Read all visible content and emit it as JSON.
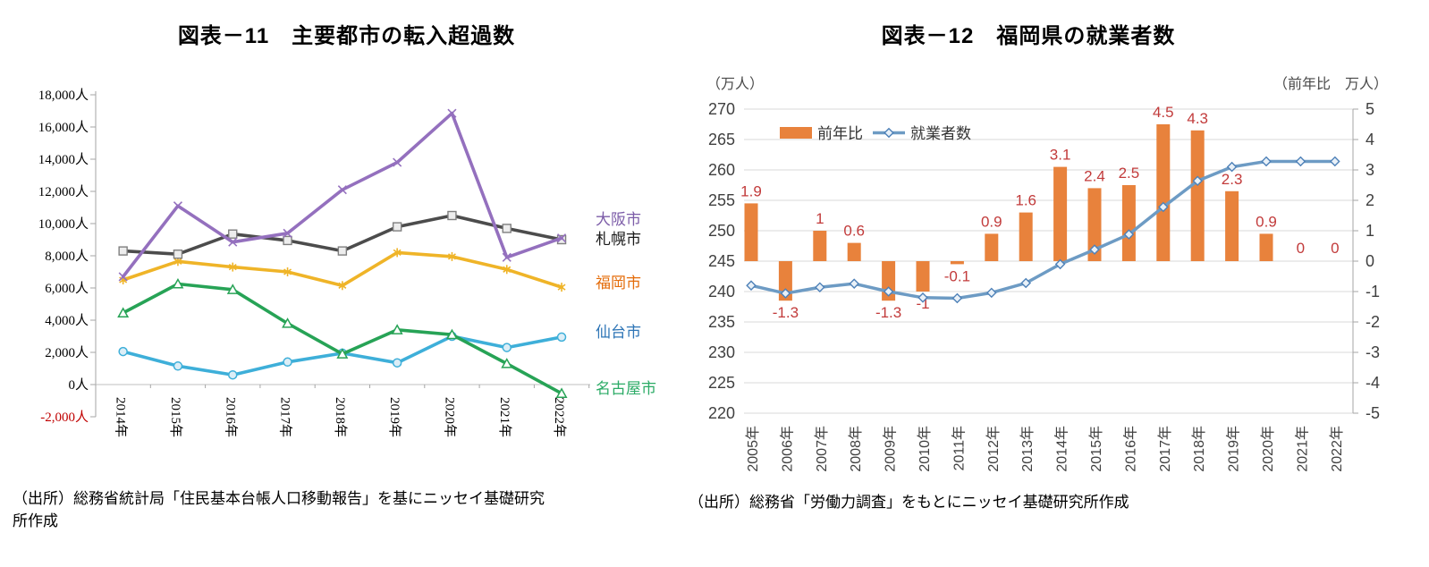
{
  "sources": {
    "left_line1": "（出所）総務省統計局「住民基本台帳人口移動報告」を基にニッセイ基礎研究",
    "left_line2": "所作成",
    "right": "（出所）総務省「労働力調査」をもとにニッセイ基礎研究所作成"
  },
  "chart_data": [
    {
      "type": "line",
      "title": "図表－11　主要都市の転入超過数",
      "categories": [
        "2014年",
        "2015年",
        "2016年",
        "2017年",
        "2018年",
        "2019年",
        "2020年",
        "2021年",
        "2022年"
      ],
      "ylim": [
        -2000,
        18000
      ],
      "ytick_step": 2000,
      "ytick_suffix": "人",
      "negative_tick_color": "#C00000",
      "grid": "zero-line-only",
      "legend_position": "right-end-labels",
      "series": [
        {
          "name": "大阪市",
          "slug": "osaka",
          "color": "#9470BE",
          "label_color": "#7C5CA8",
          "marker": "x",
          "values": [
            6700,
            11100,
            8850,
            9400,
            12100,
            13800,
            16850,
            7900,
            9100
          ]
        },
        {
          "name": "札幌市",
          "slug": "sapporo",
          "color": "#4C4C4C",
          "label_color": "#1A1A1A",
          "marker": "square",
          "values": [
            8300,
            8100,
            9350,
            8950,
            8300,
            9800,
            10500,
            9700,
            9000
          ]
        },
        {
          "name": "福岡市",
          "slug": "fukuoka",
          "color": "#EFB428",
          "label_color": "#E46C0A",
          "marker": "asterisk",
          "values": [
            6500,
            7650,
            7300,
            7000,
            6150,
            8200,
            7950,
            7150,
            6050
          ]
        },
        {
          "name": "仙台市",
          "slug": "sendai",
          "color": "#3EAFD9",
          "label_color": "#2E75B6",
          "marker": "circle",
          "values": [
            2050,
            1150,
            600,
            1400,
            1950,
            1350,
            3000,
            2300,
            2950
          ]
        },
        {
          "name": "名古屋市",
          "slug": "nagoya",
          "color": "#27A356",
          "label_color": "#2BAB66",
          "marker": "triangle",
          "values": [
            4450,
            6250,
            5900,
            3800,
            1900,
            3400,
            3100,
            1300,
            -550
          ]
        }
      ]
    },
    {
      "type": "combo",
      "title": "図表－12　福岡県の就業者数",
      "categories": [
        "2005年",
        "2006年",
        "2007年",
        "2008年",
        "2009年",
        "2010年",
        "2011年",
        "2012年",
        "2013年",
        "2014年",
        "2015年",
        "2016年",
        "2017年",
        "2018年",
        "2019年",
        "2020年",
        "2021年",
        "2022年"
      ],
      "left_axis_caption": "（万人）",
      "right_axis_caption": "（前年比　万人）",
      "left_ylim": [
        220,
        270
      ],
      "left_step": 5,
      "right_ylim": [
        -5,
        5
      ],
      "right_step": 1,
      "grid": "horizontal",
      "label_color": "#C23B3B",
      "axis_text_color": "#404040",
      "bar_series": {
        "name": "前年比",
        "slug": "yoy-change",
        "color": "#E8823C",
        "values": [
          1.9,
          -1.3,
          1,
          0.6,
          -1.3,
          -1,
          -0.1,
          0.9,
          1.6,
          3.1,
          2.4,
          2.5,
          4.5,
          4.3,
          2.3,
          0.9,
          0,
          0
        ],
        "labels": [
          "1.9",
          "-1.3",
          "1",
          "0.6",
          "-1.3",
          "-1",
          "-0.1",
          "0.9",
          "1.6",
          "3.1",
          "2.4",
          "2.5",
          "4.5",
          "4.3",
          "2.3",
          "0.9",
          "0",
          "0"
        ]
      },
      "line_series": {
        "name": "就業者数",
        "slug": "employed-persons",
        "color": "#6D9BC4",
        "marker": "diamond",
        "marker_fill": "#E9F1F8",
        "marker_stroke": "#4E81B8",
        "values": [
          241.0,
          239.7,
          240.7,
          241.3,
          240.0,
          239.0,
          238.9,
          239.8,
          241.4,
          244.5,
          246.9,
          249.4,
          253.9,
          258.2,
          260.5,
          261.4,
          261.4,
          261.4
        ]
      }
    }
  ]
}
